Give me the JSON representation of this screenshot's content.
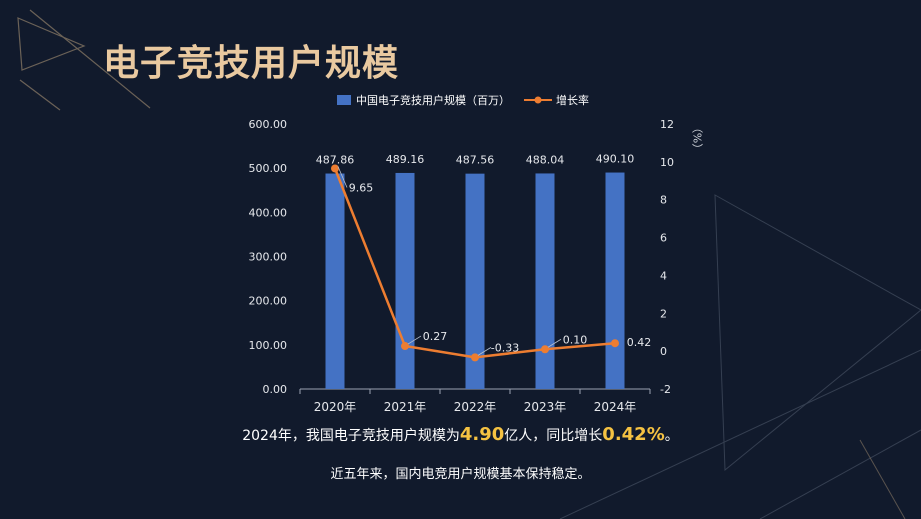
{
  "page": {
    "title": "电子竞技用户规模",
    "summary_prefix": "2024年，我国电子竞技用户规模为",
    "summary_value1": "4.90",
    "summary_mid": "亿人，同比增长",
    "summary_value2": "0.42%",
    "summary_suffix": "。",
    "summary_line2": "近五年来，国内电竞用户规模基本保持稳定。"
  },
  "chart_data": {
    "type": "bar",
    "categories": [
      "2020年",
      "2021年",
      "2022年",
      "2023年",
      "2024年"
    ],
    "series": [
      {
        "name": "中国电子竞技用户规模（百万）",
        "type": "bar",
        "axis": "left",
        "color": "#4472c4",
        "values": [
          487.86,
          489.16,
          487.56,
          488.04,
          490.1
        ],
        "labels": [
          "487.86",
          "489.16",
          "487.56",
          "488.04",
          "490.10"
        ]
      },
      {
        "name": "增长率",
        "type": "line",
        "axis": "right",
        "color": "#ed7d31",
        "values": [
          9.65,
          0.27,
          -0.33,
          0.1,
          0.42
        ],
        "labels": [
          "9.65",
          "0.27",
          "-0.33",
          "0.10",
          "0.42"
        ]
      }
    ],
    "y_left": {
      "min": 0,
      "max": 600,
      "ticks": [
        "0.00",
        "100.00",
        "200.00",
        "300.00",
        "400.00",
        "500.00",
        "600.00"
      ]
    },
    "y_right": {
      "min": -2,
      "max": 12,
      "ticks": [
        "-2",
        "0",
        "2",
        "4",
        "6",
        "8",
        "10",
        "12"
      ],
      "label": "（%）"
    },
    "legend_position": "top",
    "grid": false
  }
}
